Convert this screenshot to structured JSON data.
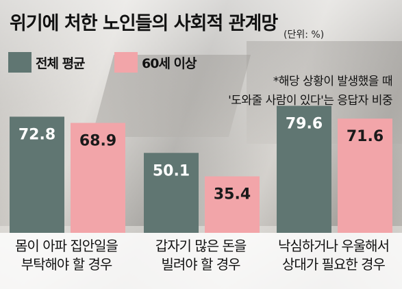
{
  "title": "위기에 처한 노인들의 사회적 관계망",
  "unit": "(단위: %)",
  "legend": [
    {
      "label": "전체 평균",
      "color": "#607672"
    },
    {
      "label": "60세 이상",
      "color": "#f2a5a9"
    }
  ],
  "note": {
    "line1": "*해당 상황이 발생했을 때",
    "line2": "'도와줄 사람이 있다'는 응답자 비중"
  },
  "chart_data": {
    "type": "bar",
    "categories": [
      [
        "몸이 아파 집안일을",
        "부탁해야 할 경우"
      ],
      [
        "갑자기 많은 돈을",
        "빌려야 할 경우"
      ],
      [
        "낙심하거나 우울해서",
        "상대가 필요한 경우"
      ]
    ],
    "series": [
      {
        "name": "전체 평균",
        "color": "#607672",
        "values": [
          72.8,
          50.1,
          79.6
        ]
      },
      {
        "name": "60세 이상",
        "color": "#f2a5a9",
        "values": [
          68.9,
          35.4,
          71.6
        ]
      }
    ],
    "ylim": [
      0,
      100
    ],
    "grid": false,
    "legend_position": "top-left"
  }
}
